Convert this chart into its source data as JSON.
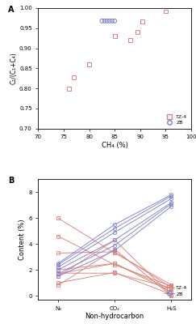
{
  "panel_A": {
    "title": "A",
    "xlabel": "CH₄ (%)",
    "ylabel": "C₁/(C₁+C₄)",
    "xlim": [
      70,
      100
    ],
    "ylim": [
      0.7,
      1.0
    ],
    "xticks": [
      70,
      75,
      80,
      85,
      90,
      95,
      100
    ],
    "yticks": [
      0.7,
      0.75,
      0.8,
      0.85,
      0.9,
      0.95,
      1.0
    ],
    "TZ4_x": [
      76,
      77,
      80,
      85,
      88,
      89.5,
      90.5,
      95
    ],
    "TZ4_y": [
      0.8,
      0.828,
      0.86,
      0.93,
      0.921,
      0.94,
      0.967,
      0.992
    ],
    "ZB_x": [
      82.5,
      83.0,
      83.5,
      84.0,
      84.5,
      85.0
    ],
    "ZB_y": [
      0.968,
      0.968,
      0.968,
      0.968,
      0.968,
      0.968
    ]
  },
  "panel_B": {
    "title": "B",
    "xlabel": "Non-hydrocarbon",
    "ylabel": "Content (%)",
    "ylim": [
      -0.3,
      9
    ],
    "yticks": [
      0,
      2,
      4,
      6,
      8
    ],
    "xtick_labels": [
      "N₂",
      "CO₂",
      "H₂S"
    ],
    "TZ4_series": [
      [
        0.8,
        3.6,
        0.0
      ],
      [
        1.0,
        1.8,
        0.1
      ],
      [
        1.5,
        4.3,
        0.05
      ],
      [
        1.7,
        2.5,
        0.3
      ],
      [
        1.75,
        1.75,
        0.6
      ],
      [
        2.0,
        2.5,
        0.5
      ],
      [
        3.3,
        3.4,
        0.65
      ],
      [
        4.6,
        2.4,
        0.75
      ],
      [
        6.0,
        3.3,
        0.85
      ]
    ],
    "ZB_series": [
      [
        1.5,
        3.5,
        6.9
      ],
      [
        1.7,
        3.9,
        7.1
      ],
      [
        2.0,
        4.3,
        7.2
      ],
      [
        2.2,
        4.9,
        7.5
      ],
      [
        2.4,
        5.2,
        7.7
      ],
      [
        2.5,
        5.5,
        7.8
      ]
    ]
  },
  "TZ4_color": "#d9847a",
  "ZB_color": "#8080cc",
  "marker_size": 3.5
}
